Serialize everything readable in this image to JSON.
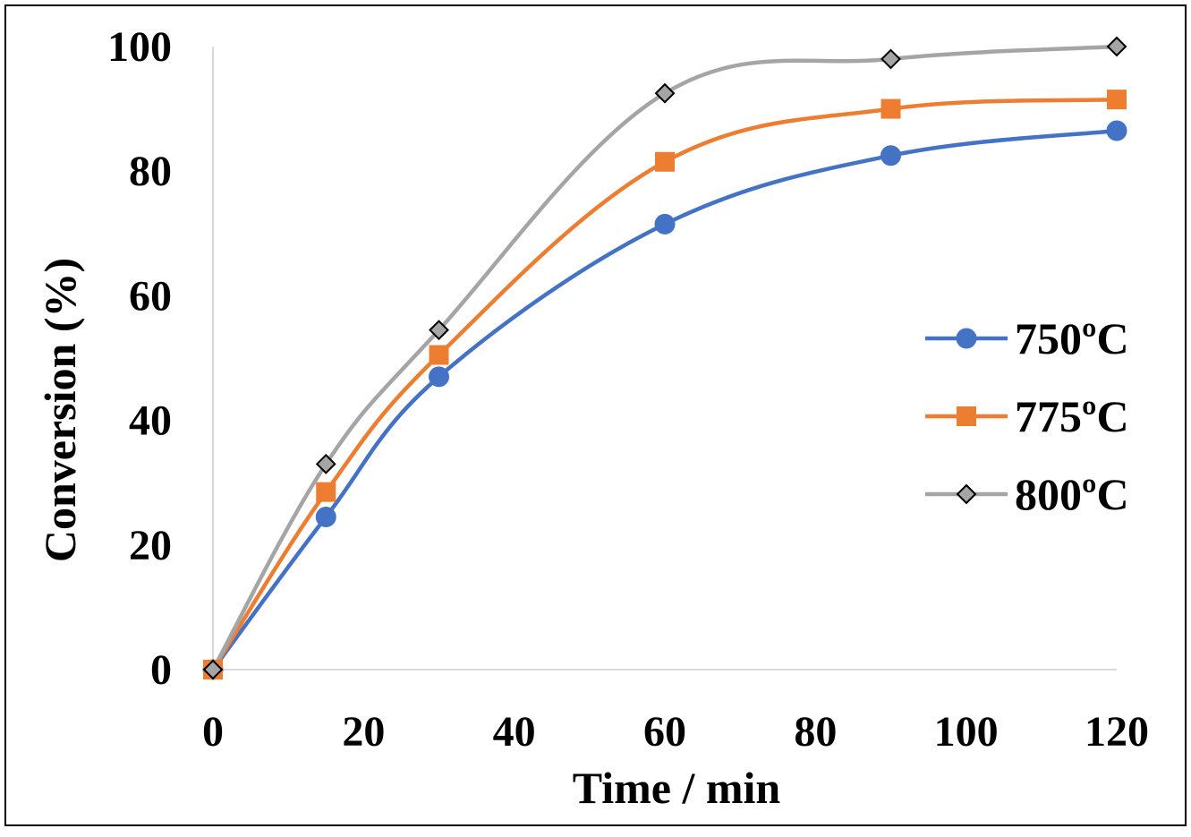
{
  "chart_data": {
    "type": "line",
    "title": "",
    "xlabel": "Time / min",
    "ylabel": "Conversion (%)",
    "xlim": [
      0,
      120
    ],
    "ylim": [
      0,
      100
    ],
    "xticks": [
      0,
      20,
      40,
      60,
      80,
      100,
      120
    ],
    "yticks": [
      0,
      20,
      40,
      60,
      80,
      100
    ],
    "xtick_labels": [
      "0",
      "20",
      "40",
      "60",
      "80",
      "100",
      "120"
    ],
    "ytick_labels": [
      "0",
      "20",
      "40",
      "60",
      "80",
      "100"
    ],
    "grid": false,
    "smooth": true,
    "legend_position": "right",
    "series": [
      {
        "name": "750ºC",
        "color": "#4472C4",
        "marker": "circle",
        "x": [
          0,
          15,
          30,
          60,
          90,
          120
        ],
        "y": [
          0,
          24.5,
          47,
          71.5,
          82.5,
          86.5
        ]
      },
      {
        "name": "775ºC",
        "color": "#ED7D31",
        "marker": "square",
        "x": [
          0,
          15,
          30,
          60,
          90,
          120
        ],
        "y": [
          0,
          28.5,
          50.5,
          81.5,
          90,
          91.5
        ]
      },
      {
        "name": "800ºC",
        "color": "#A5A5A5",
        "marker": "diamond",
        "x": [
          0,
          15,
          30,
          60,
          90,
          120
        ],
        "y": [
          0,
          33,
          54.5,
          92.5,
          98,
          100
        ]
      }
    ]
  }
}
